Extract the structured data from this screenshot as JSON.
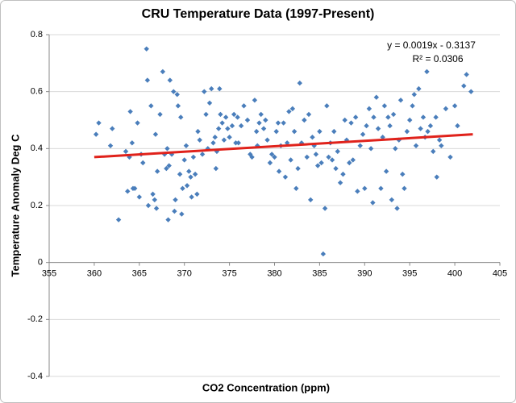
{
  "chart_data": {
    "type": "scatter",
    "title": "CRU Temperature Data (1997-Present)",
    "x_label": "CO2 Concentration (ppm)",
    "y_label": "Temperature Anomaly Deg C",
    "annotations": [
      "y = 0.0019x - 0.3137",
      "R² = 0.0306"
    ],
    "xlim": [
      355,
      405
    ],
    "xticks": [
      355,
      360,
      365,
      370,
      375,
      380,
      385,
      390,
      395,
      400,
      405
    ],
    "ylim": [
      -0.4,
      0.8
    ],
    "yticks": [
      -0.4,
      -0.2,
      0,
      0.2,
      0.4,
      0.6,
      0.8
    ],
    "grid": true,
    "series": [
      {
        "color": "#4a7ebb",
        "x": [
          360.2,
          360.5,
          361.8,
          362,
          362.7,
          363.5,
          363.7,
          363.9,
          364,
          364.2,
          364.3,
          364.5,
          364.8,
          365,
          365.2,
          365.4,
          365.8,
          365.9,
          366,
          366.3,
          366.5,
          366.7,
          366.8,
          366.9,
          367,
          367.3,
          367.6,
          367.8,
          368,
          368.1,
          368.2,
          368.3,
          368.4,
          368.6,
          368.8,
          368.9,
          369,
          369.2,
          369.3,
          369.5,
          369.6,
          369.7,
          369.8,
          370,
          370.2,
          370.3,
          370.5,
          370.7,
          370.8,
          371,
          371.2,
          371.4,
          371.5,
          371.7,
          372,
          372.2,
          372.4,
          372.6,
          372.8,
          373,
          373.2,
          373.4,
          373.5,
          373.6,
          373.8,
          373.9,
          374,
          374.2,
          374.4,
          374.6,
          374.8,
          375,
          375.3,
          375.5,
          375.7,
          375.9,
          376,
          376.3,
          376.6,
          377,
          377.3,
          377.5,
          377.8,
          378,
          378.1,
          378.3,
          378.5,
          378.8,
          379,
          379.2,
          379.5,
          379.7,
          380,
          380.2,
          380.4,
          380.5,
          380.7,
          381,
          381.2,
          381.4,
          381.6,
          381.8,
          382,
          382.2,
          382.4,
          382.6,
          382.8,
          383,
          383.3,
          383.6,
          383.8,
          384,
          384.2,
          384.4,
          384.6,
          384.8,
          385,
          385.2,
          385.4,
          385.6,
          385.8,
          386,
          386.2,
          386.4,
          386.6,
          386.8,
          387,
          387.3,
          387.6,
          387.8,
          388,
          388.3,
          388.5,
          388.7,
          389,
          389.2,
          389.5,
          389.8,
          390,
          390.2,
          390.5,
          390.7,
          390.9,
          391,
          391.3,
          391.5,
          391.8,
          392,
          392.2,
          392.4,
          392.6,
          392.8,
          393,
          393.2,
          393.4,
          393.6,
          393.8,
          394,
          394.2,
          394.4,
          394.7,
          395,
          395.3,
          395.5,
          395.7,
          396,
          396.2,
          396.5,
          396.7,
          396.9,
          397,
          397.3,
          397.6,
          397.9,
          398,
          398.3,
          398.5,
          399,
          399.5,
          400,
          400.3,
          401,
          401.3,
          401.8
        ],
        "values": [
          0.45,
          0.49,
          0.41,
          0.47,
          0.15,
          0.39,
          0.25,
          0.37,
          0.53,
          0.42,
          0.26,
          0.26,
          0.49,
          0.23,
          0.38,
          0.35,
          0.75,
          0.64,
          0.2,
          0.55,
          0.24,
          0.22,
          0.45,
          0.19,
          0.32,
          0.52,
          0.67,
          0.38,
          0.33,
          0.4,
          0.15,
          0.34,
          0.64,
          0.38,
          0.6,
          0.18,
          0.22,
          0.59,
          0.55,
          0.31,
          0.51,
          0.17,
          0.26,
          0.36,
          0.41,
          0.27,
          0.32,
          0.3,
          0.23,
          0.37,
          0.31,
          0.24,
          0.46,
          0.43,
          0.38,
          0.6,
          0.52,
          0.4,
          0.56,
          0.61,
          0.42,
          0.44,
          0.33,
          0.39,
          0.47,
          0.61,
          0.52,
          0.49,
          0.43,
          0.51,
          0.47,
          0.44,
          0.48,
          0.52,
          0.42,
          0.51,
          0.42,
          0.48,
          0.55,
          0.5,
          0.38,
          0.37,
          0.57,
          0.46,
          0.41,
          0.49,
          0.52,
          0.47,
          0.5,
          0.43,
          0.35,
          0.38,
          0.37,
          0.46,
          0.49,
          0.32,
          0.41,
          0.49,
          0.3,
          0.42,
          0.53,
          0.36,
          0.54,
          0.46,
          0.26,
          0.33,
          0.63,
          0.42,
          0.5,
          0.37,
          0.52,
          0.22,
          0.44,
          0.41,
          0.38,
          0.34,
          0.46,
          0.35,
          0.03,
          0.19,
          0.55,
          0.37,
          0.42,
          0.36,
          0.46,
          0.33,
          0.39,
          0.28,
          0.31,
          0.5,
          0.43,
          0.35,
          0.49,
          0.36,
          0.51,
          0.25,
          0.41,
          0.45,
          0.26,
          0.48,
          0.54,
          0.4,
          0.21,
          0.51,
          0.58,
          0.47,
          0.26,
          0.44,
          0.55,
          0.32,
          0.51,
          0.48,
          0.22,
          0.52,
          0.4,
          0.19,
          0.43,
          0.57,
          0.31,
          0.26,
          0.46,
          0.5,
          0.55,
          0.59,
          0.41,
          0.61,
          0.47,
          0.51,
          0.44,
          0.67,
          0.46,
          0.48,
          0.39,
          0.51,
          0.3,
          0.43,
          0.41,
          0.54,
          0.37,
          0.55,
          0.48,
          0.62,
          0.66,
          0.6
        ]
      }
    ],
    "trendline": {
      "color": "#e0221b",
      "x": [
        360,
        402
      ],
      "values": [
        0.37,
        0.45
      ]
    }
  }
}
